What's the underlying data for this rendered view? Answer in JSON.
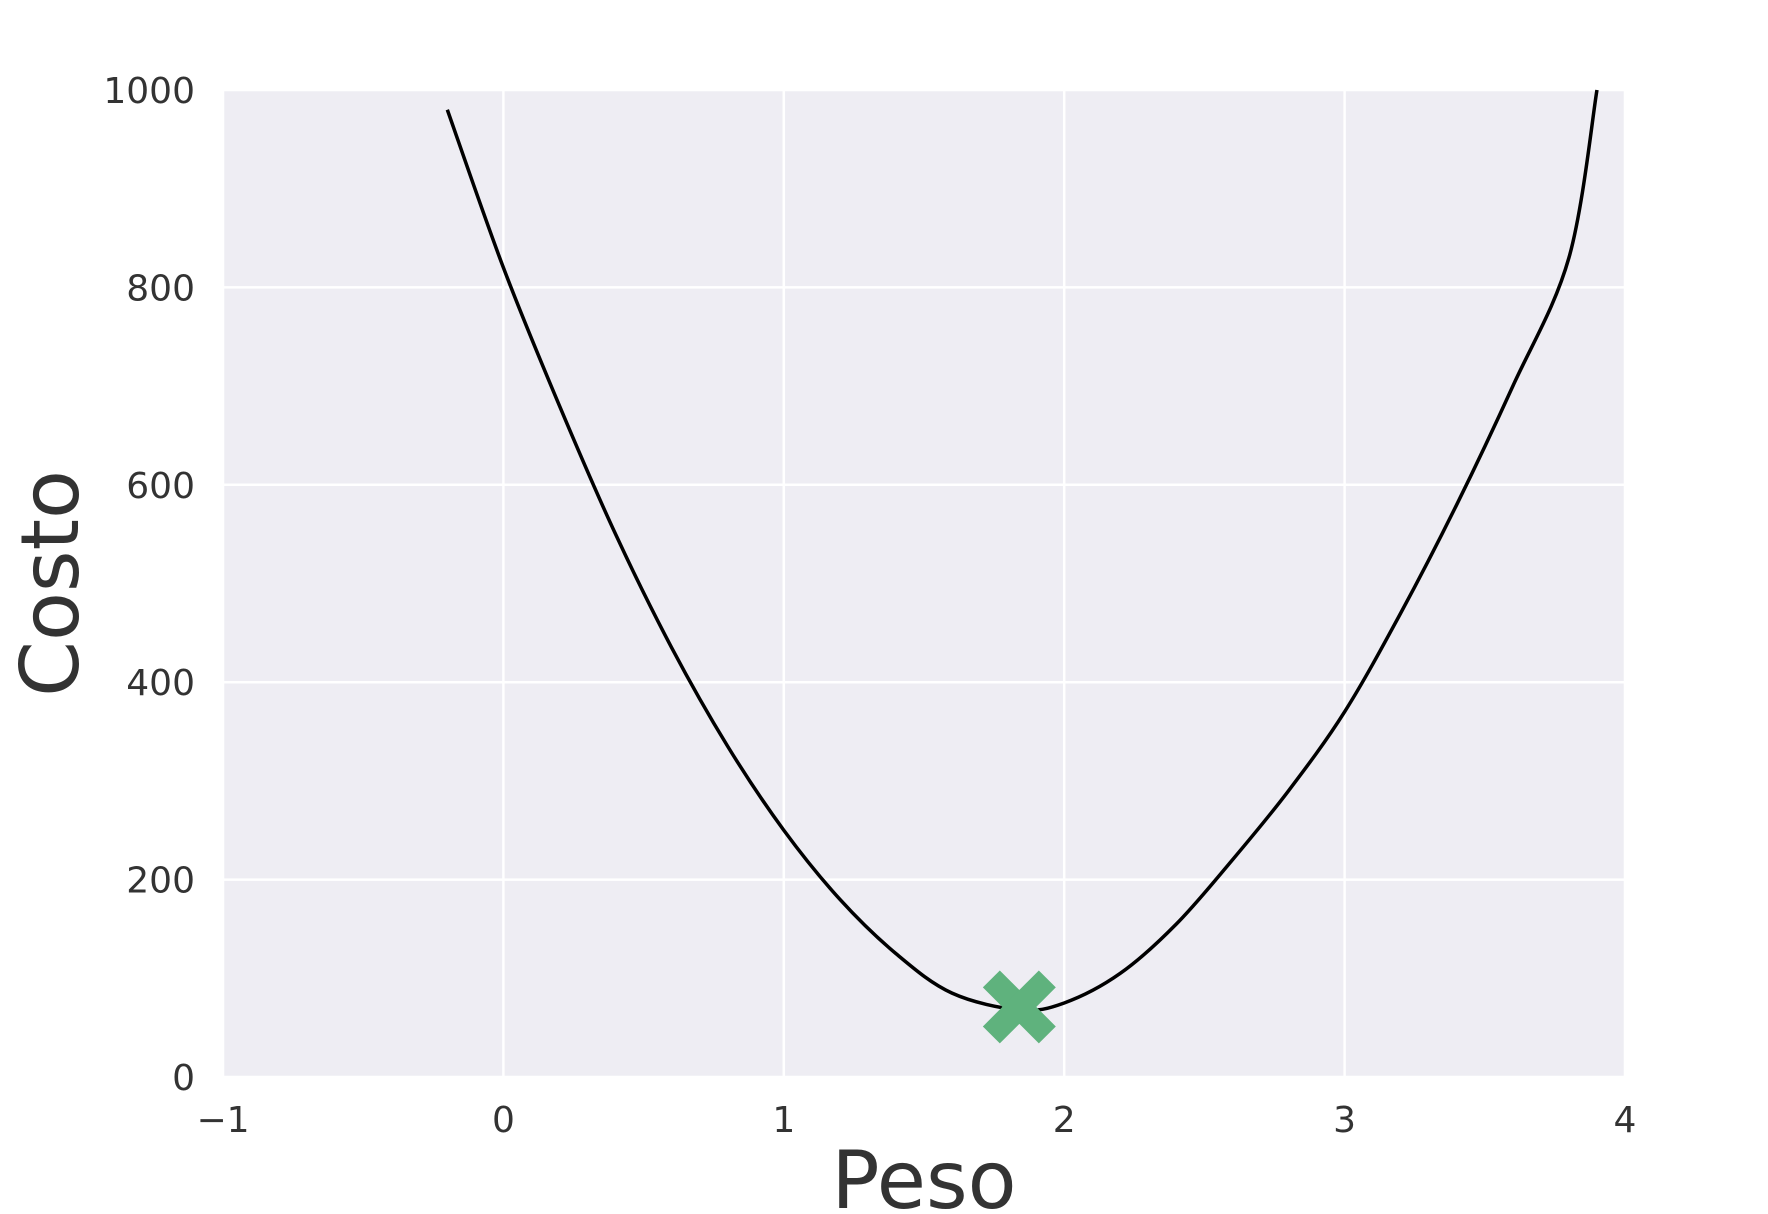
{
  "chart_data": {
    "type": "line",
    "title": "",
    "xlabel": "Peso",
    "ylabel": "Costo",
    "xlim": [
      -1,
      4
    ],
    "ylim": [
      0,
      1000
    ],
    "x_ticks": [
      -1,
      0,
      1,
      2,
      3,
      4
    ],
    "x_tick_labels": [
      "−1",
      "0",
      "1",
      "2",
      "3",
      "4"
    ],
    "y_ticks": [
      0,
      200,
      400,
      600,
      800,
      1000
    ],
    "y_tick_labels": [
      "0",
      "200",
      "400",
      "600",
      "800",
      "1000"
    ],
    "grid": true,
    "background_color": "#eeedf3",
    "grid_color": "#ffffff",
    "series": [
      {
        "line_color": "#000000",
        "x": [
          -0.2,
          0.0,
          0.2,
          0.4,
          0.6,
          0.8,
          1.0,
          1.2,
          1.4,
          1.6,
          1.84,
          2.0,
          2.2,
          2.4,
          2.6,
          2.8,
          3.0,
          3.2,
          3.4,
          3.6,
          3.8,
          3.9
        ],
        "y": [
          980,
          820,
          680,
          550,
          435,
          335,
          250,
          180,
          125,
          85,
          68,
          75,
          105,
          155,
          220,
          290,
          370,
          470,
          580,
          700,
          830,
          1000
        ]
      }
    ],
    "markers": [
      {
        "shape": "x-marker",
        "color": "#5fb27d",
        "x": 1.84,
        "y": 71
      }
    ]
  }
}
